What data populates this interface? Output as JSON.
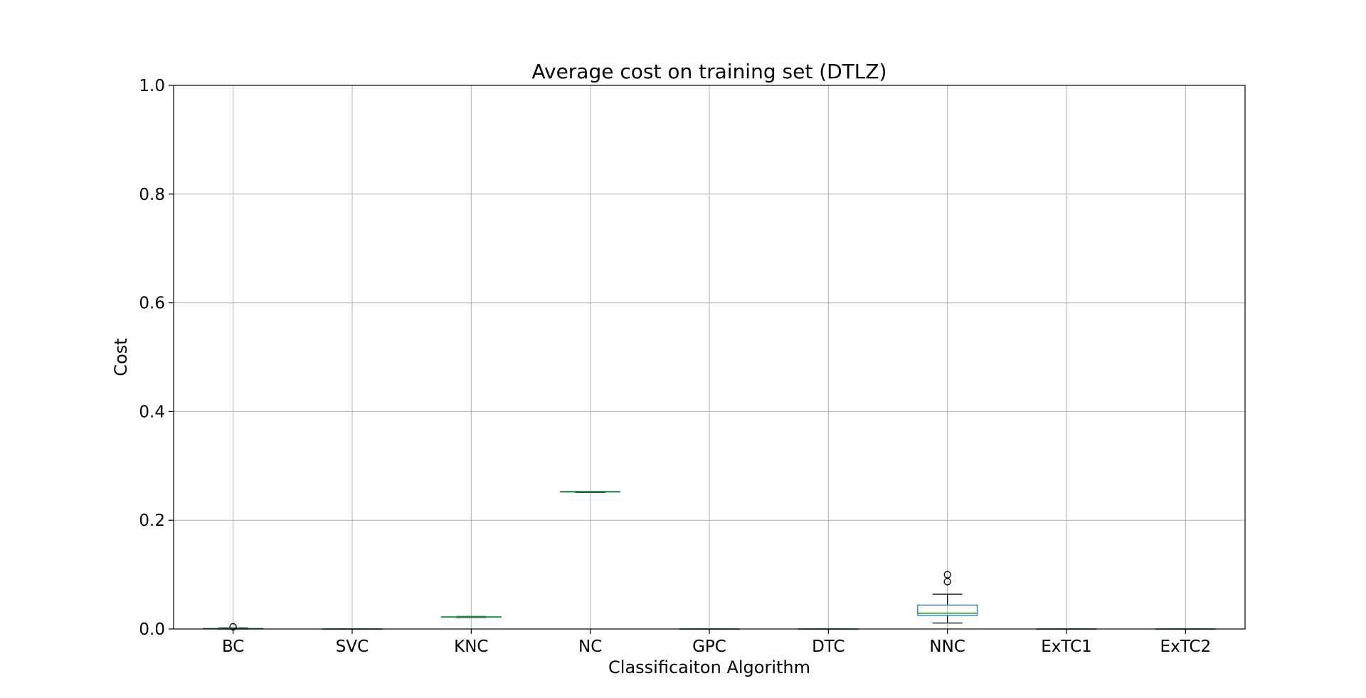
{
  "chart_data": {
    "type": "box",
    "title": "Average cost on training set (DTLZ)",
    "xlabel": "Classificaiton Algorithm",
    "ylabel": "Cost",
    "ylim": [
      0.0,
      1.0
    ],
    "yticks": [
      "0.0",
      "0.2",
      "0.4",
      "0.6",
      "0.8",
      "1.0"
    ],
    "grid": true,
    "categories": [
      "BC",
      "SVC",
      "KNC",
      "NC",
      "GPC",
      "DTC",
      "NNC",
      "ExTC1",
      "ExTC2"
    ],
    "boxes": [
      {
        "name": "BC",
        "whislo": 0.0,
        "q1": 0.0,
        "med": 0.0005,
        "q3": 0.001,
        "whishi": 0.002,
        "fliers": [
          0.004
        ]
      },
      {
        "name": "SVC",
        "whislo": 0.0,
        "q1": 0.0,
        "med": 0.0,
        "q3": 0.0,
        "whishi": 0.0,
        "fliers": []
      },
      {
        "name": "KNC",
        "whislo": 0.021,
        "q1": 0.0215,
        "med": 0.022,
        "q3": 0.0225,
        "whishi": 0.023,
        "fliers": []
      },
      {
        "name": "NC",
        "whislo": 0.251,
        "q1": 0.252,
        "med": 0.252,
        "q3": 0.253,
        "whishi": 0.253,
        "fliers": []
      },
      {
        "name": "GPC",
        "whislo": 0.0,
        "q1": 0.0,
        "med": 0.0,
        "q3": 0.0,
        "whishi": 0.0,
        "fliers": []
      },
      {
        "name": "DTC",
        "whislo": 0.0,
        "q1": 0.0,
        "med": 0.0,
        "q3": 0.0,
        "whishi": 0.0,
        "fliers": []
      },
      {
        "name": "NNC",
        "whislo": 0.011,
        "q1": 0.025,
        "med": 0.029,
        "q3": 0.044,
        "whishi": 0.064,
        "fliers": [
          0.087,
          0.1
        ]
      },
      {
        "name": "ExTC1",
        "whislo": 0.0,
        "q1": 0.0,
        "med": 0.0,
        "q3": 0.0,
        "whishi": 0.0,
        "fliers": []
      },
      {
        "name": "ExTC2",
        "whislo": 0.0,
        "q1": 0.0,
        "med": 0.0,
        "q3": 0.0,
        "whishi": 0.0,
        "fliers": []
      }
    ],
    "colors": {
      "box": "#1f77b4",
      "median": "#2ca02c",
      "whisker": "#000000",
      "grid": "#b0b0b0",
      "axes": "#000000"
    }
  }
}
